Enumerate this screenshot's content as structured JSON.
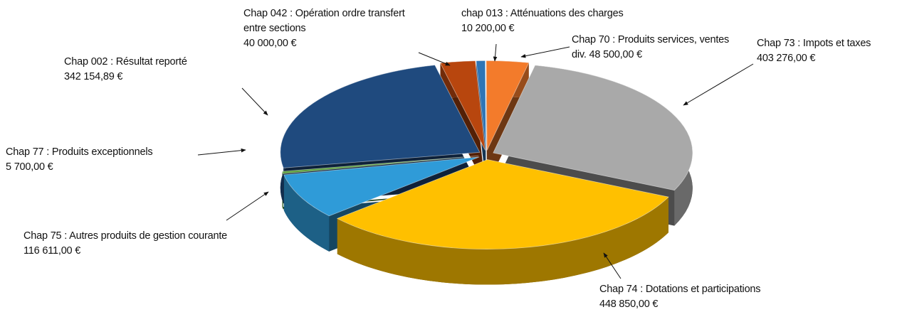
{
  "chart_data": {
    "type": "pie",
    "categories": [
      "Chap 042 : Opération ordre transfert entre sections",
      "chap 013 : Atténuations des charges",
      "Chap 70 : Produits services, ventes div.",
      "Chap 73 : Impots et taxes",
      "Chap 74 : Dotations et participations",
      "Chap 75 : Autres produits de gestion courante",
      "Chap 77 : Produits exceptionnels",
      "Chap 002 : Résultat reporté"
    ],
    "values": [
      40000,
      10200,
      48500,
      403276,
      448850,
      116611,
      5700,
      342154.89
    ],
    "value_labels": [
      "40 000,00 €",
      "10 200,00 €",
      "48 500,00 €",
      "403 276,00 €",
      "448 850,00 €",
      "116 611,00 €",
      "5 700,00 €",
      "342 154,89 €"
    ],
    "colors": [
      "#b8460e",
      "#2e75b6",
      "#f37b2b",
      "#a9a9a9",
      "#ffc000",
      "#2f9bd8",
      "#5b9e3b",
      "#1f4a7e"
    ]
  }
}
